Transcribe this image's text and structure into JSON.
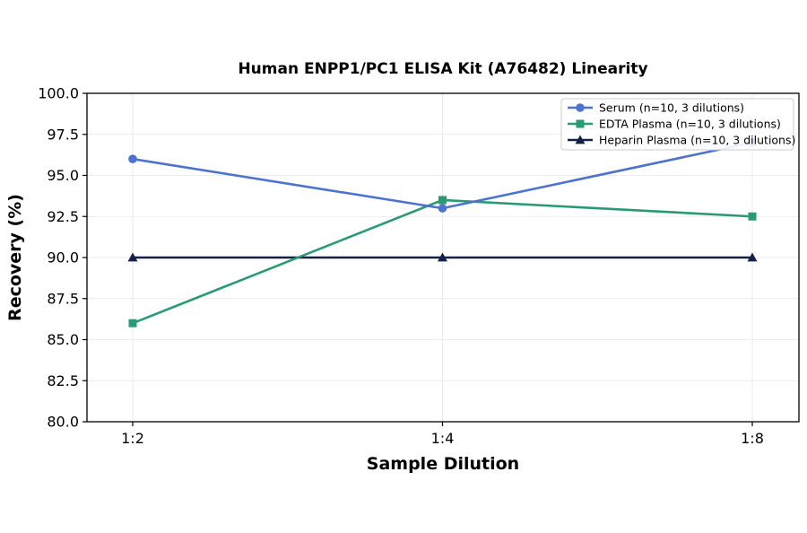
{
  "chart_data": {
    "type": "line",
    "title": "Human ENPP1/PC1 ELISA Kit (A76482) Linearity",
    "xlabel": "Sample Dilution",
    "ylabel": "Recovery (%)",
    "categories": [
      "1:2",
      "1:4",
      "1:8"
    ],
    "ylim": [
      80.0,
      100.0
    ],
    "yticks": [
      "80.0",
      "82.5",
      "85.0",
      "87.5",
      "90.0",
      "92.5",
      "95.0",
      "97.5",
      "100.0"
    ],
    "grid": true,
    "legend_position": "top-right",
    "series": [
      {
        "name": "Serum (n=10, 3 dilutions)",
        "values": [
          96.0,
          93.0,
          97.0
        ],
        "color": "#4e73cf",
        "marker": "circle"
      },
      {
        "name": "EDTA Plasma (n=10, 3 dilutions)",
        "values": [
          86.0,
          93.5,
          92.5
        ],
        "color": "#2a9a73",
        "marker": "square"
      },
      {
        "name": "Heparin Plasma (n=10, 3 dilutions)",
        "values": [
          90.0,
          90.0,
          90.0
        ],
        "color": "#13204a",
        "marker": "triangle"
      }
    ]
  }
}
